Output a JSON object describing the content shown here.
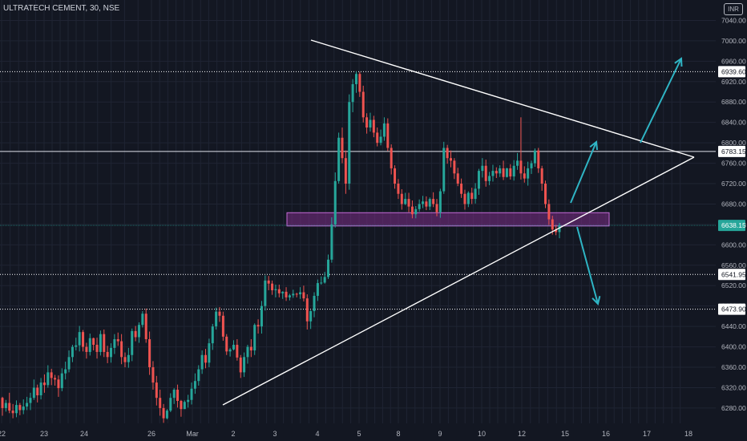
{
  "header": {
    "symbol": "ULTRATECH CEMENT, 30, NSE",
    "currency": "INR"
  },
  "colors": {
    "bg": "#131722",
    "grid": "#1f2433",
    "axis_text": "#b2b5be",
    "up": "#26a69a",
    "down": "#ef5350",
    "pattern": "#ffffff",
    "arrow": "#2fb5c5",
    "zone_fill": "#7b2d86",
    "zone_stroke": "#c46bd6"
  },
  "chart_data": {
    "type": "candlestick",
    "ylim": [
      6250,
      7080
    ],
    "price_ticks": [
      6280,
      6320,
      6360,
      6400,
      6440,
      6480,
      6520,
      6560,
      6600,
      6640,
      6680,
      6720,
      6760,
      6800,
      6840,
      6880,
      6920,
      6960,
      7000,
      7040
    ],
    "price_tick_labels": [
      "6280.00",
      "6320.00",
      "6360.00",
      "6400.00",
      "6440.00",
      "6480.00",
      "6520.00",
      "6560.00",
      "6600.00",
      "6640.00",
      "6680.00",
      "6720.00",
      "6760.00",
      "6800.00",
      "6840.00",
      "6880.00",
      "6920.00",
      "6960.00",
      "7000.00",
      "7040.00"
    ],
    "date_labels": [
      "22",
      "23",
      "24",
      "26",
      "Mar",
      "2",
      "3",
      "4",
      "5",
      "8",
      "9",
      "10",
      "12",
      "15",
      "16",
      "17",
      "18"
    ],
    "levels": [
      {
        "value": 6939.6,
        "label": "6939.60",
        "style": "dotted"
      },
      {
        "value": 6783.15,
        "label": "6783.15",
        "style": "solid"
      },
      {
        "value": 6638.15,
        "label": "6638.15",
        "style": "current"
      },
      {
        "value": 6541.95,
        "label": "6541.95",
        "style": "dotted"
      },
      {
        "value": 6473.9,
        "label": "6473.90",
        "style": "dotted"
      }
    ],
    "last_price": 6638.15,
    "candles": [
      [
        6300,
        6280,
        6302,
        6265
      ],
      [
        6280,
        6290,
        6296,
        6273
      ],
      [
        6290,
        6275,
        6310,
        6270
      ],
      [
        6275,
        6270,
        6288,
        6260
      ],
      [
        6270,
        6286,
        6295,
        6262
      ],
      [
        6286,
        6276,
        6290,
        6266
      ],
      [
        6276,
        6283,
        6297,
        6268
      ],
      [
        6283,
        6290,
        6302,
        6276
      ],
      [
        6290,
        6300,
        6310,
        6276
      ],
      [
        6300,
        6320,
        6336,
        6296
      ],
      [
        6320,
        6305,
        6326,
        6291
      ],
      [
        6305,
        6330,
        6339,
        6297
      ],
      [
        6330,
        6325,
        6346,
        6310
      ],
      [
        6325,
        6350,
        6364,
        6320
      ],
      [
        6350,
        6339,
        6357,
        6325
      ],
      [
        6339,
        6336,
        6345,
        6324
      ],
      [
        6336,
        6319,
        6344,
        6302
      ],
      [
        6319,
        6348,
        6358,
        6313
      ],
      [
        6348,
        6356,
        6371,
        6336
      ],
      [
        6356,
        6380,
        6393,
        6350
      ],
      [
        6380,
        6400,
        6404,
        6370
      ],
      [
        6400,
        6403,
        6418,
        6393
      ],
      [
        6403,
        6429,
        6441,
        6391
      ],
      [
        6429,
        6400,
        6433,
        6391
      ],
      [
        6400,
        6390,
        6408,
        6377
      ],
      [
        6390,
        6417,
        6426,
        6383
      ],
      [
        6417,
        6404,
        6418,
        6393
      ],
      [
        6404,
        6390,
        6418,
        6377
      ],
      [
        6390,
        6425,
        6432,
        6383
      ],
      [
        6425,
        6390,
        6434,
        6380
      ],
      [
        6390,
        6380,
        6402,
        6368
      ],
      [
        6380,
        6398,
        6407,
        6369
      ],
      [
        6398,
        6415,
        6425,
        6386
      ],
      [
        6415,
        6411,
        6428,
        6402
      ],
      [
        6411,
        6380,
        6425,
        6366
      ],
      [
        6380,
        6370,
        6389,
        6360
      ],
      [
        6370,
        6384,
        6398,
        6359
      ],
      [
        6384,
        6431,
        6436,
        6372
      ],
      [
        6431,
        6419,
        6441,
        6411
      ],
      [
        6419,
        6443,
        6448,
        6408
      ],
      [
        6443,
        6465,
        6470,
        6438
      ],
      [
        6465,
        6415,
        6475,
        6408
      ],
      [
        6415,
        6360,
        6430,
        6345
      ],
      [
        6360,
        6330,
        6372,
        6316
      ],
      [
        6330,
        6300,
        6343,
        6285
      ],
      [
        6300,
        6280,
        6316,
        6265
      ],
      [
        6280,
        6260,
        6288,
        6251
      ],
      [
        6260,
        6275,
        6278,
        6258
      ],
      [
        6275,
        6300,
        6309,
        6272
      ],
      [
        6300,
        6316,
        6319,
        6288
      ],
      [
        6316,
        6294,
        6326,
        6281
      ],
      [
        6294,
        6278,
        6296,
        6263
      ],
      [
        6278,
        6292,
        6295,
        6278
      ],
      [
        6292,
        6296,
        6306,
        6281
      ],
      [
        6296,
        6318,
        6330,
        6287
      ],
      [
        6318,
        6333,
        6348,
        6308
      ],
      [
        6333,
        6356,
        6364,
        6324
      ],
      [
        6356,
        6384,
        6393,
        6347
      ],
      [
        6384,
        6369,
        6396,
        6358
      ],
      [
        6369,
        6407,
        6416,
        6360
      ],
      [
        6407,
        6440,
        6445,
        6394
      ],
      [
        6440,
        6469,
        6477,
        6434
      ],
      [
        6469,
        6461,
        6478,
        6449
      ],
      [
        6461,
        6420,
        6469,
        6412
      ],
      [
        6420,
        6391,
        6425,
        6384
      ],
      [
        6391,
        6395,
        6398,
        6381
      ],
      [
        6395,
        6404,
        6413,
        6393
      ],
      [
        6404,
        6379,
        6415,
        6373
      ],
      [
        6379,
        6350,
        6384,
        6339
      ],
      [
        6350,
        6380,
        6389,
        6341
      ],
      [
        6380,
        6400,
        6404,
        6367
      ],
      [
        6400,
        6393,
        6415,
        6380
      ],
      [
        6393,
        6443,
        6446,
        6384
      ],
      [
        6443,
        6440,
        6454,
        6426
      ],
      [
        6440,
        6480,
        6490,
        6426
      ],
      [
        6480,
        6530,
        6540,
        6471
      ],
      [
        6530,
        6524,
        6539,
        6511
      ],
      [
        6524,
        6511,
        6530,
        6502
      ],
      [
        6511,
        6513,
        6522,
        6497
      ],
      [
        6513,
        6505,
        6522,
        6497
      ],
      [
        6505,
        6508,
        6509,
        6494
      ],
      [
        6508,
        6497,
        6517,
        6490
      ],
      [
        6497,
        6501,
        6504,
        6491
      ],
      [
        6501,
        6504,
        6512,
        6496
      ],
      [
        6504,
        6503,
        6506,
        6497
      ],
      [
        6503,
        6507,
        6517,
        6494
      ],
      [
        6507,
        6495,
        6520,
        6489
      ],
      [
        6495,
        6450,
        6503,
        6434
      ],
      [
        6450,
        6470,
        6472,
        6435
      ],
      [
        6470,
        6500,
        6507,
        6458
      ],
      [
        6500,
        6525,
        6532,
        6490
      ],
      [
        6525,
        6526,
        6538,
        6522
      ],
      [
        6526,
        6537,
        6547,
        6524
      ],
      [
        6537,
        6571,
        6581,
        6533
      ],
      [
        6571,
        6640,
        6654,
        6565
      ],
      [
        6640,
        6725,
        6742,
        6634
      ],
      [
        6725,
        6810,
        6820,
        6720
      ],
      [
        6810,
        6770,
        6830,
        6760
      ],
      [
        6770,
        6720,
        6785,
        6700
      ],
      [
        6720,
        6880,
        6895,
        6708
      ],
      [
        6880,
        6915,
        6925,
        6860
      ],
      [
        6915,
        6935,
        6940,
        6898
      ],
      [
        6935,
        6900,
        6939,
        6890
      ],
      [
        6900,
        6850,
        6912,
        6840
      ],
      [
        6850,
        6830,
        6858,
        6818
      ],
      [
        6830,
        6845,
        6859,
        6822
      ],
      [
        6845,
        6820,
        6853,
        6811
      ],
      [
        6820,
        6800,
        6830,
        6793
      ],
      [
        6800,
        6812,
        6826,
        6795
      ],
      [
        6812,
        6838,
        6850,
        6804
      ],
      [
        6838,
        6790,
        6848,
        6784
      ],
      [
        6790,
        6750,
        6797,
        6738
      ],
      [
        6750,
        6720,
        6756,
        6710
      ],
      [
        6720,
        6700,
        6729,
        6690
      ],
      [
        6700,
        6680,
        6709,
        6669
      ],
      [
        6680,
        6690,
        6702,
        6678
      ],
      [
        6690,
        6675,
        6702,
        6664
      ],
      [
        6675,
        6660,
        6687,
        6652
      ],
      [
        6660,
        6670,
        6676,
        6652
      ],
      [
        6670,
        6680,
        6689,
        6665
      ],
      [
        6680,
        6685,
        6696,
        6672
      ],
      [
        6685,
        6675,
        6695,
        6668
      ],
      [
        6675,
        6690,
        6693,
        6668
      ],
      [
        6690,
        6680,
        6703,
        6674
      ],
      [
        6680,
        6664,
        6690,
        6656
      ],
      [
        6664,
        6705,
        6710,
        6653
      ],
      [
        6705,
        6790,
        6802,
        6700
      ],
      [
        6790,
        6770,
        6796,
        6759
      ],
      [
        6770,
        6765,
        6785,
        6752
      ],
      [
        6765,
        6740,
        6770,
        6729
      ],
      [
        6740,
        6720,
        6751,
        6715
      ],
      [
        6720,
        6700,
        6730,
        6692
      ],
      [
        6700,
        6680,
        6708,
        6669
      ],
      [
        6680,
        6702,
        6705,
        6674
      ],
      [
        6702,
        6690,
        6712,
        6680
      ],
      [
        6690,
        6710,
        6721,
        6681
      ],
      [
        6710,
        6745,
        6749,
        6698
      ],
      [
        6745,
        6755,
        6770,
        6732
      ],
      [
        6755,
        6725,
        6767,
        6714
      ],
      [
        6725,
        6735,
        6743,
        6717
      ],
      [
        6735,
        6745,
        6757,
        6724
      ],
      [
        6745,
        6740,
        6752,
        6731
      ],
      [
        6740,
        6750,
        6756,
        6733
      ],
      [
        6750,
        6733,
        6765,
        6727
      ],
      [
        6733,
        6750,
        6751,
        6732
      ],
      [
        6750,
        6734,
        6758,
        6728
      ],
      [
        6734,
        6755,
        6766,
        6726
      ],
      [
        6755,
        6765,
        6780,
        6747
      ],
      [
        6765,
        6740,
        6850,
        6728
      ],
      [
        6740,
        6730,
        6754,
        6722
      ],
      [
        6730,
        6750,
        6763,
        6716
      ],
      [
        6750,
        6760,
        6765,
        6739
      ],
      [
        6760,
        6785,
        6789,
        6753
      ],
      [
        6785,
        6750,
        6790,
        6741
      ],
      [
        6750,
        6720,
        6755,
        6706
      ],
      [
        6720,
        6680,
        6726,
        6672
      ],
      [
        6680,
        6650,
        6689,
        6639
      ],
      [
        6650,
        6630,
        6657,
        6620
      ],
      [
        6630,
        6625,
        6639,
        6619
      ],
      [
        6625,
        6638,
        6643,
        6613
      ]
    ]
  },
  "annotations": {
    "zone": [
      6637,
      6663
    ]
  }
}
